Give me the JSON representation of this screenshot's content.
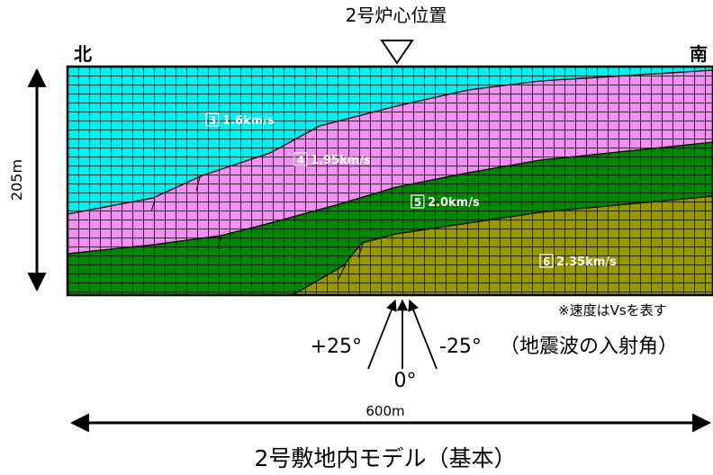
{
  "header": {
    "reactor_position": "2号炉心位置",
    "north": "北",
    "south": "南"
  },
  "axes": {
    "depth": "205m",
    "width": "600m"
  },
  "layers": [
    {
      "number": "3",
      "velocity": "1.6km/s",
      "color": "#00f0f0"
    },
    {
      "number": "4",
      "velocity": "1.95km/s",
      "color": "#f090f0"
    },
    {
      "number": "5",
      "velocity": "2.0km/s",
      "color": "#008800"
    },
    {
      "number": "6",
      "velocity": "2.35km/s",
      "color": "#989800"
    }
  ],
  "note": "※速度はVsを表す",
  "incidence": {
    "plus": "+25°",
    "zero": "0°",
    "minus": "-25°",
    "caption": "（地震波の入射角）"
  },
  "title": "2号敷地内モデル（基本）"
}
